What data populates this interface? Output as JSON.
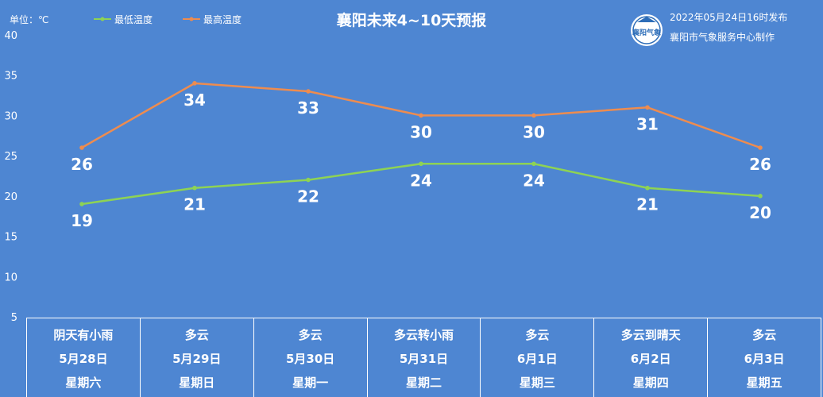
{
  "header": {
    "unit": "单位：℃",
    "publish_time": "2022年05月24日16时发布",
    "publisher": "襄阳市气象服务中心制作",
    "logo_text": "襄阳气象"
  },
  "chart_data": {
    "type": "line",
    "title": "襄阳未来4~10天预报",
    "ylim": [
      5,
      40
    ],
    "yticks": [
      "40",
      "35",
      "30",
      "25",
      "20",
      "15",
      "10",
      "5"
    ],
    "grid": false,
    "legend": "top-left",
    "series": [
      {
        "name": "最低温度",
        "color": "#8ed354",
        "values": [
          19,
          21,
          22,
          24,
          24,
          21,
          20
        ]
      },
      {
        "name": "最高温度",
        "color": "#ee8c4f",
        "values": [
          26,
          34,
          33,
          30,
          30,
          31,
          26
        ]
      }
    ]
  },
  "days": [
    {
      "weather": "阴天有小雨",
      "date": "5月28日",
      "weekday": "星期六"
    },
    {
      "weather": "多云",
      "date": "5月29日",
      "weekday": "星期日"
    },
    {
      "weather": "多云",
      "date": "5月30日",
      "weekday": "星期一"
    },
    {
      "weather": "多云转小雨",
      "date": "5月31日",
      "weekday": "星期二"
    },
    {
      "weather": "多云",
      "date": "6月1日",
      "weekday": "星期三"
    },
    {
      "weather": "多云到晴天",
      "date": "6月2日",
      "weekday": "星期四"
    },
    {
      "weather": "多云",
      "date": "6月3日",
      "weekday": "星期五"
    }
  ]
}
